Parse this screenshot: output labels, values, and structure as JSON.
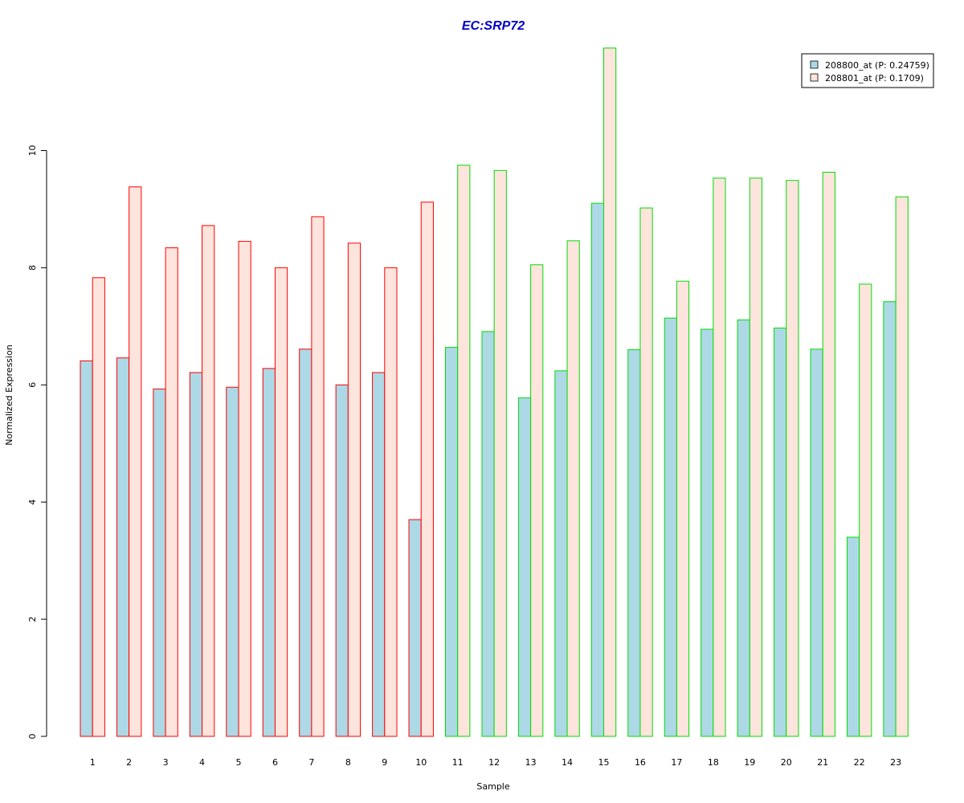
{
  "chart_data": {
    "type": "bar",
    "title": "EC:SRP72",
    "xlabel": "Sample",
    "ylabel": "Normalized Expression",
    "ylim": [
      0,
      12
    ],
    "yticks": [
      "0",
      "2",
      "4",
      "6",
      "8",
      "10"
    ],
    "categories": [
      "1",
      "2",
      "3",
      "4",
      "5",
      "6",
      "7",
      "8",
      "9",
      "10",
      "11",
      "12",
      "13",
      "14",
      "15",
      "16",
      "17",
      "18",
      "19",
      "20",
      "21",
      "22",
      "23"
    ],
    "series": [
      {
        "name": "208800_at (P: 0.24759)",
        "fill": "#add8e6",
        "values": [
          6.41,
          6.46,
          5.93,
          6.21,
          5.96,
          6.28,
          6.61,
          6.0,
          6.21,
          3.7,
          6.64,
          6.91,
          5.78,
          6.24,
          9.1,
          6.6,
          7.14,
          6.95,
          7.11,
          6.97,
          6.61,
          3.4,
          7.42
        ]
      },
      {
        "name": "208801_at (P: 0.1709)",
        "fill": "#fde4dc",
        "values": [
          7.83,
          9.38,
          8.34,
          8.72,
          8.45,
          8.0,
          8.87,
          8.42,
          8.0,
          9.12,
          9.75,
          9.66,
          8.05,
          8.46,
          11.75,
          9.02,
          7.77,
          9.53,
          9.53,
          9.49,
          9.63,
          7.72,
          9.21
        ]
      }
    ],
    "group_border_colors": [
      "#ff0000",
      "#ff0000",
      "#ff0000",
      "#ff0000",
      "#ff0000",
      "#ff0000",
      "#ff0000",
      "#ff0000",
      "#ff0000",
      "#ff0000",
      "#00dd00",
      "#00dd00",
      "#00dd00",
      "#00dd00",
      "#00dd00",
      "#00dd00",
      "#00dd00",
      "#00dd00",
      "#00dd00",
      "#00dd00",
      "#00dd00",
      "#00dd00",
      "#00dd00"
    ],
    "title_color": "#0000cc",
    "legend_position": "top-right",
    "grid": false
  }
}
